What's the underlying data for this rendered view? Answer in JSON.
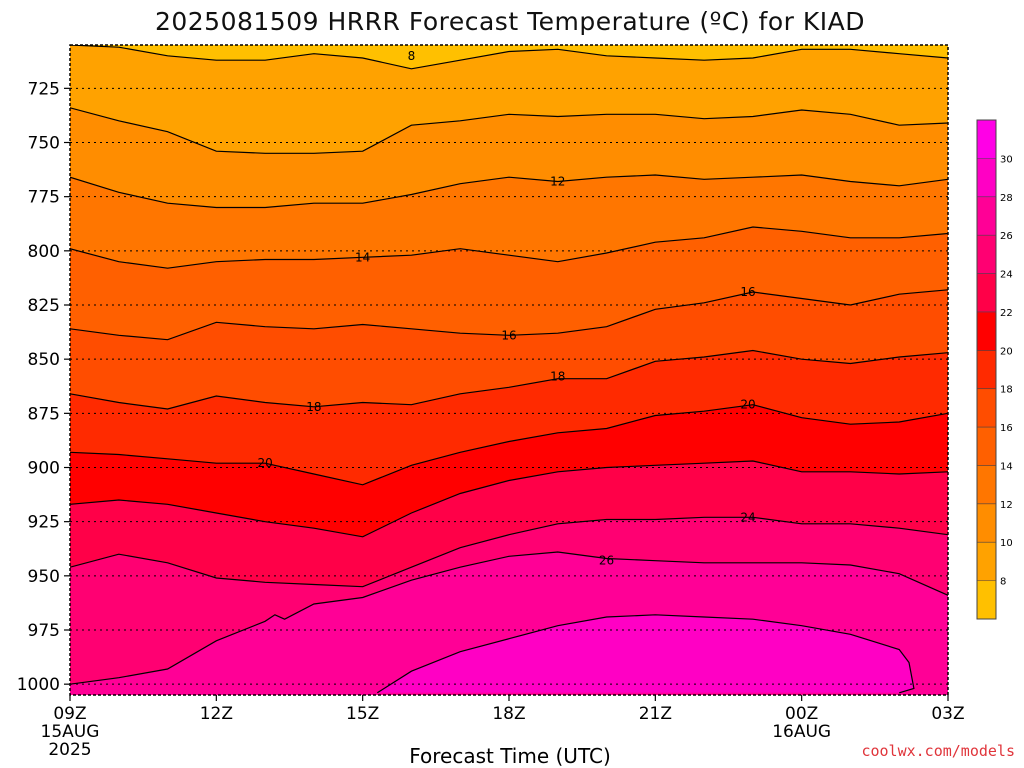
{
  "chart_data": {
    "type": "heatmap",
    "title": "2025081509 HRRR Forecast Temperature (ºC) for KIAD",
    "xlabel": "Forecast Time (UTC)",
    "ylabel": "",
    "credit": "coolwx.com/models",
    "x_ticks": [
      {
        "lines": [
          "09Z",
          "15AUG",
          "2025"
        ]
      },
      {
        "lines": [
          "12Z"
        ]
      },
      {
        "lines": [
          "15Z"
        ]
      },
      {
        "lines": [
          "18Z"
        ]
      },
      {
        "lines": [
          "21Z"
        ]
      },
      {
        "lines": [
          "00Z",
          "16AUG"
        ]
      },
      {
        "lines": [
          "03Z"
        ]
      }
    ],
    "x_hours": [
      0,
      3,
      6,
      9,
      12,
      15,
      18
    ],
    "xlim": [
      0,
      18
    ],
    "y_ticks": [
      725,
      750,
      775,
      800,
      825,
      850,
      875,
      900,
      925,
      950,
      975,
      1000
    ],
    "ylim": [
      705,
      1005
    ],
    "y_reversed": true,
    "ground_hpa": 1005,
    "colorbar_ticks": [
      8,
      10,
      12,
      14,
      16,
      18,
      20,
      22,
      24,
      26,
      28,
      30
    ],
    "colorbar_colors": [
      "#ffc000",
      "#ffa200",
      "#ff8d00",
      "#ff7600",
      "#ff6000",
      "#ff4d00",
      "#ff2a00",
      "#ff0000",
      "#ff0048",
      "#ff0072",
      "#ff0096",
      "#ff00c4",
      "#ff00e6"
    ],
    "contour_levels": [
      8,
      10,
      12,
      14,
      16,
      18,
      20,
      22,
      24,
      26,
      28
    ],
    "contour_labels": [
      {
        "level": "8",
        "hour": 7.0,
        "hpa": 710
      },
      {
        "level": "12",
        "hour": 10.0,
        "hpa": 768
      },
      {
        "level": "14",
        "hour": 6.0,
        "hpa": 803
      },
      {
        "level": "16",
        "hour": 9.0,
        "hpa": 839
      },
      {
        "level": "16",
        "hour": 13.9,
        "hpa": 819
      },
      {
        "level": "18",
        "hour": 5.0,
        "hpa": 872
      },
      {
        "level": "18",
        "hour": 10.0,
        "hpa": 858
      },
      {
        "level": "20",
        "hour": 4.0,
        "hpa": 898
      },
      {
        "level": "20",
        "hour": 13.9,
        "hpa": 871
      },
      {
        "level": "24",
        "hour": 13.9,
        "hpa": 923
      },
      {
        "level": "26",
        "hour": 11.0,
        "hpa": 943
      }
    ],
    "contours": [
      {
        "level": 8,
        "points": [
          [
            0,
            705
          ],
          [
            1,
            706
          ],
          [
            2,
            710
          ],
          [
            3,
            712
          ],
          [
            4,
            712
          ],
          [
            5,
            709
          ],
          [
            6,
            711
          ],
          [
            7,
            716
          ],
          [
            8,
            712
          ],
          [
            9,
            708
          ],
          [
            10,
            707
          ],
          [
            11,
            710
          ],
          [
            12,
            711
          ],
          [
            13,
            712
          ],
          [
            14,
            711
          ],
          [
            15,
            707
          ],
          [
            16,
            707
          ],
          [
            17,
            709
          ],
          [
            18,
            711
          ]
        ]
      },
      {
        "level": 10,
        "points": [
          [
            0,
            734
          ],
          [
            1,
            740
          ],
          [
            2,
            745
          ],
          [
            3,
            754
          ],
          [
            4,
            755
          ],
          [
            5,
            755
          ],
          [
            6,
            754
          ],
          [
            7,
            742
          ],
          [
            8,
            740
          ],
          [
            9,
            737
          ],
          [
            10,
            738
          ],
          [
            11,
            737
          ],
          [
            12,
            737
          ],
          [
            13,
            739
          ],
          [
            14,
            738
          ],
          [
            15,
            735
          ],
          [
            16,
            737
          ],
          [
            17,
            742
          ],
          [
            18,
            741
          ]
        ]
      },
      {
        "level": 12,
        "points": [
          [
            0,
            766
          ],
          [
            1,
            773
          ],
          [
            2,
            778
          ],
          [
            3,
            780
          ],
          [
            4,
            780
          ],
          [
            5,
            778
          ],
          [
            6,
            778
          ],
          [
            7,
            774
          ],
          [
            8,
            769
          ],
          [
            9,
            766
          ],
          [
            10,
            768
          ],
          [
            11,
            766
          ],
          [
            12,
            765
          ],
          [
            13,
            767
          ],
          [
            14,
            766
          ],
          [
            15,
            765
          ],
          [
            16,
            768
          ],
          [
            17,
            770
          ],
          [
            18,
            767
          ]
        ]
      },
      {
        "level": 14,
        "points": [
          [
            0,
            799
          ],
          [
            1,
            805
          ],
          [
            2,
            808
          ],
          [
            3,
            805
          ],
          [
            4,
            804
          ],
          [
            5,
            804
          ],
          [
            6,
            803
          ],
          [
            7,
            802
          ],
          [
            8,
            799
          ],
          [
            9,
            802
          ],
          [
            10,
            805
          ],
          [
            11,
            801
          ],
          [
            12,
            796
          ],
          [
            13,
            794
          ],
          [
            14,
            789
          ],
          [
            15,
            791
          ],
          [
            16,
            794
          ],
          [
            17,
            794
          ],
          [
            18,
            792
          ]
        ]
      },
      {
        "level": 16,
        "points": [
          [
            0,
            836
          ],
          [
            1,
            839
          ],
          [
            2,
            841
          ],
          [
            3,
            833
          ],
          [
            4,
            835
          ],
          [
            5,
            836
          ],
          [
            6,
            834
          ],
          [
            7,
            836
          ],
          [
            8,
            838
          ],
          [
            9,
            839
          ],
          [
            10,
            838
          ],
          [
            11,
            835
          ],
          [
            12,
            827
          ],
          [
            13,
            824
          ],
          [
            14,
            819
          ],
          [
            15,
            822
          ],
          [
            16,
            825
          ],
          [
            17,
            820
          ],
          [
            18,
            818
          ]
        ]
      },
      {
        "level": 18,
        "points": [
          [
            0,
            866
          ],
          [
            1,
            870
          ],
          [
            2,
            873
          ],
          [
            3,
            867
          ],
          [
            4,
            870
          ],
          [
            5,
            872
          ],
          [
            6,
            870
          ],
          [
            7,
            871
          ],
          [
            8,
            866
          ],
          [
            9,
            863
          ],
          [
            10,
            859
          ],
          [
            11,
            859
          ],
          [
            12,
            851
          ],
          [
            13,
            849
          ],
          [
            14,
            846
          ],
          [
            15,
            850
          ],
          [
            16,
            852
          ],
          [
            17,
            849
          ],
          [
            18,
            847
          ]
        ]
      },
      {
        "level": 20,
        "points": [
          [
            0,
            893
          ],
          [
            1,
            894
          ],
          [
            2,
            896
          ],
          [
            3,
            898
          ],
          [
            4,
            898
          ],
          [
            5,
            903
          ],
          [
            6,
            908
          ],
          [
            7,
            899
          ],
          [
            8,
            893
          ],
          [
            9,
            888
          ],
          [
            10,
            884
          ],
          [
            11,
            882
          ],
          [
            12,
            876
          ],
          [
            13,
            874
          ],
          [
            14,
            871
          ],
          [
            15,
            877
          ],
          [
            16,
            880
          ],
          [
            17,
            879
          ],
          [
            18,
            875
          ]
        ]
      },
      {
        "level": 22,
        "points": [
          [
            0,
            917
          ],
          [
            1,
            915
          ],
          [
            2,
            917
          ],
          [
            3,
            921
          ],
          [
            4,
            925
          ],
          [
            5,
            928
          ],
          [
            6,
            932
          ],
          [
            7,
            921
          ],
          [
            8,
            912
          ],
          [
            9,
            906
          ],
          [
            10,
            902
          ],
          [
            11,
            900
          ],
          [
            12,
            899
          ],
          [
            13,
            898
          ],
          [
            14,
            897
          ],
          [
            15,
            902
          ],
          [
            16,
            902
          ],
          [
            17,
            903
          ],
          [
            18,
            902
          ]
        ]
      },
      {
        "level": 24,
        "points": [
          [
            0,
            946
          ],
          [
            1,
            940
          ],
          [
            2,
            944
          ],
          [
            3,
            951
          ],
          [
            4,
            953
          ],
          [
            5,
            954
          ],
          [
            6,
            955
          ],
          [
            7,
            946
          ],
          [
            8,
            937
          ],
          [
            9,
            931
          ],
          [
            10,
            926
          ],
          [
            11,
            924
          ],
          [
            12,
            924
          ],
          [
            13,
            923
          ],
          [
            14,
            923
          ],
          [
            15,
            926
          ],
          [
            16,
            926
          ],
          [
            17,
            928
          ],
          [
            18,
            931
          ]
        ]
      },
      {
        "level": 26,
        "points": [
          [
            0,
            1000
          ],
          [
            1,
            997
          ],
          [
            2,
            993
          ],
          [
            3,
            980
          ],
          [
            4,
            971
          ],
          [
            4.2,
            968
          ],
          [
            4.4,
            970
          ],
          [
            5,
            963
          ],
          [
            6,
            960
          ],
          [
            7,
            952
          ],
          [
            8,
            946
          ],
          [
            9,
            941
          ],
          [
            10,
            939
          ],
          [
            11,
            942
          ],
          [
            12,
            943
          ],
          [
            13,
            944
          ],
          [
            14,
            944
          ],
          [
            15,
            944
          ],
          [
            16,
            945
          ],
          [
            17,
            949
          ],
          [
            18,
            959
          ]
        ]
      },
      {
        "level": 28,
        "points": [
          [
            6.3,
            1004
          ],
          [
            7,
            994
          ],
          [
            8,
            985
          ],
          [
            9,
            979
          ],
          [
            10,
            973
          ],
          [
            11,
            969
          ],
          [
            12,
            968
          ],
          [
            13,
            969
          ],
          [
            14,
            970
          ],
          [
            15,
            973
          ],
          [
            16,
            977
          ],
          [
            17,
            984
          ],
          [
            17.2,
            990
          ],
          [
            17.3,
            1002
          ],
          [
            17.0,
            1004
          ]
        ]
      }
    ],
    "colorbar_tick_labels_drawn": true
  }
}
